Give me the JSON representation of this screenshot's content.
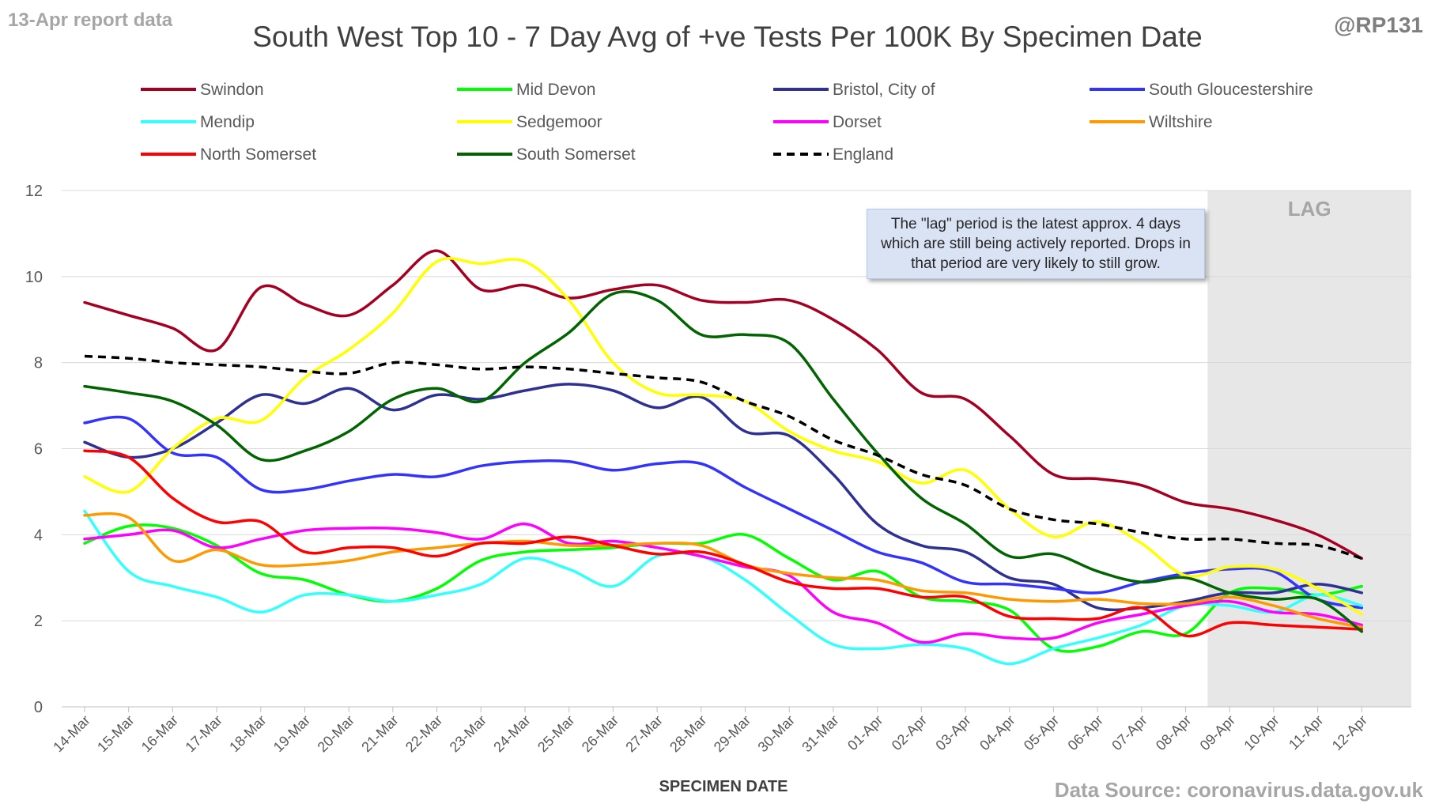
{
  "header": {
    "report_date_label": "13-Apr report data",
    "handle": "@RP131",
    "source": "Data Source: coronavirus.data.gov.uk"
  },
  "annotation": {
    "lag_label": "LAG",
    "lag_note": "The \"lag\" period is the latest approx. 4 days which are still being actively reported. Drops in that period are very likely to still grow."
  },
  "colors": {
    "lag_band": "#e7e7e7",
    "gridline": "#d9d9d9",
    "axis_text": "#595959"
  },
  "chart_data": {
    "type": "line",
    "title": "South West Top 10 - 7 Day Avg of +ve Tests Per 100K By Specimen Date",
    "xlabel": "SPECIMEN DATE",
    "ylabel": "",
    "ylim": [
      0,
      12
    ],
    "yticks": [
      0,
      2,
      4,
      6,
      8,
      10,
      12
    ],
    "grid": true,
    "legend_position": "top",
    "lag_period": [
      "09-Apr",
      "12-Apr"
    ],
    "categories": [
      "14-Mar",
      "15-Mar",
      "16-Mar",
      "17-Mar",
      "18-Mar",
      "19-Mar",
      "20-Mar",
      "21-Mar",
      "22-Mar",
      "23-Mar",
      "24-Mar",
      "25-Mar",
      "26-Mar",
      "27-Mar",
      "28-Mar",
      "29-Mar",
      "30-Mar",
      "31-Mar",
      "01-Apr",
      "02-Apr",
      "03-Apr",
      "04-Apr",
      "05-Apr",
      "06-Apr",
      "07-Apr",
      "08-Apr",
      "09-Apr",
      "10-Apr",
      "11-Apr",
      "12-Apr"
    ],
    "series": [
      {
        "name": "Swindon",
        "color": "#a50021",
        "dashed": false,
        "values": [
          9.4,
          9.1,
          8.8,
          8.3,
          9.75,
          9.35,
          9.1,
          9.8,
          10.6,
          9.7,
          9.8,
          9.5,
          9.7,
          9.8,
          9.45,
          9.4,
          9.45,
          9.0,
          8.3,
          7.3,
          7.15,
          6.3,
          5.4,
          5.3,
          5.15,
          4.75,
          4.6,
          4.35,
          4.0,
          3.45
        ]
      },
      {
        "name": "Mid Devon",
        "color": "#00ff00",
        "dashed": false,
        "values": [
          3.8,
          4.2,
          4.15,
          3.75,
          3.1,
          2.95,
          2.6,
          2.45,
          2.75,
          3.4,
          3.6,
          3.65,
          3.7,
          3.8,
          3.8,
          4.0,
          3.45,
          2.95,
          3.15,
          2.55,
          2.45,
          2.25,
          1.35,
          1.4,
          1.75,
          1.7,
          2.65,
          2.75,
          2.6,
          2.8
        ]
      },
      {
        "name": "Bristol, City of",
        "color": "#2e3192",
        "dashed": false,
        "values": [
          6.15,
          5.8,
          6.0,
          6.6,
          7.25,
          7.05,
          7.4,
          6.9,
          7.25,
          7.15,
          7.35,
          7.5,
          7.35,
          6.95,
          7.2,
          6.4,
          6.3,
          5.4,
          4.25,
          3.75,
          3.6,
          3.0,
          2.85,
          2.3,
          2.3,
          2.45,
          2.65,
          2.65,
          2.85,
          2.65
        ]
      },
      {
        "name": "South Gloucestershire",
        "color": "#3333ff",
        "dashed": false,
        "values": [
          6.6,
          6.7,
          5.9,
          5.8,
          5.05,
          5.05,
          5.25,
          5.4,
          5.35,
          5.6,
          5.7,
          5.7,
          5.5,
          5.65,
          5.65,
          5.1,
          4.6,
          4.1,
          3.6,
          3.35,
          2.9,
          2.85,
          2.75,
          2.65,
          2.9,
          3.1,
          3.2,
          3.15,
          2.5,
          2.3
        ]
      },
      {
        "name": "Mendip",
        "color": "#33ffff",
        "dashed": false,
        "values": [
          4.55,
          3.15,
          2.8,
          2.55,
          2.2,
          2.6,
          2.6,
          2.45,
          2.6,
          2.85,
          3.45,
          3.2,
          2.8,
          3.5,
          3.5,
          2.95,
          2.15,
          1.45,
          1.35,
          1.45,
          1.35,
          1.0,
          1.35,
          1.6,
          1.9,
          2.35,
          2.35,
          2.2,
          2.6,
          2.35
        ]
      },
      {
        "name": "Sedgemoor",
        "color": "#ffff00",
        "dashed": false,
        "values": [
          5.35,
          5.0,
          6.0,
          6.7,
          6.65,
          7.65,
          8.3,
          9.15,
          10.35,
          10.3,
          10.35,
          9.45,
          8.0,
          7.3,
          7.25,
          7.1,
          6.4,
          5.95,
          5.7,
          5.2,
          5.5,
          4.6,
          3.95,
          4.3,
          3.8,
          3.05,
          3.25,
          3.2,
          2.75,
          2.15
        ]
      },
      {
        "name": "Dorset",
        "color": "#ff00ff",
        "dashed": false,
        "values": [
          3.9,
          4.0,
          4.1,
          3.7,
          3.9,
          4.1,
          4.15,
          4.15,
          4.05,
          3.9,
          4.25,
          3.8,
          3.85,
          3.7,
          3.5,
          3.25,
          3.05,
          2.2,
          1.95,
          1.5,
          1.7,
          1.6,
          1.6,
          1.95,
          2.15,
          2.35,
          2.45,
          2.2,
          2.15,
          1.9
        ]
      },
      {
        "name": "Wiltshire",
        "color": "#ff9900",
        "dashed": false,
        "values": [
          4.45,
          4.4,
          3.4,
          3.65,
          3.3,
          3.3,
          3.4,
          3.6,
          3.7,
          3.8,
          3.85,
          3.75,
          3.75,
          3.8,
          3.75,
          3.3,
          3.1,
          3.0,
          2.95,
          2.7,
          2.65,
          2.5,
          2.45,
          2.5,
          2.4,
          2.4,
          2.55,
          2.35,
          2.05,
          1.85
        ]
      },
      {
        "name": "North Somerset",
        "color": "#ff0000",
        "dashed": false,
        "values": [
          5.95,
          5.8,
          4.85,
          4.3,
          4.3,
          3.6,
          3.7,
          3.7,
          3.5,
          3.8,
          3.8,
          3.95,
          3.75,
          3.55,
          3.6,
          3.3,
          2.9,
          2.75,
          2.75,
          2.55,
          2.55,
          2.1,
          2.05,
          2.05,
          2.3,
          1.65,
          1.95,
          1.9,
          1.85,
          1.8
        ]
      },
      {
        "name": "South Somerset",
        "color": "#006400",
        "dashed": false,
        "values": [
          7.45,
          7.3,
          7.1,
          6.55,
          5.75,
          5.95,
          6.4,
          7.15,
          7.4,
          7.1,
          8.0,
          8.7,
          9.6,
          9.45,
          8.65,
          8.65,
          8.45,
          7.15,
          5.9,
          4.85,
          4.25,
          3.5,
          3.55,
          3.15,
          2.9,
          3.0,
          2.65,
          2.5,
          2.5,
          1.75
        ]
      },
      {
        "name": "England",
        "color": "#000000",
        "dashed": true,
        "values": [
          8.15,
          8.1,
          8.0,
          7.95,
          7.9,
          7.8,
          7.75,
          8.0,
          7.95,
          7.85,
          7.9,
          7.85,
          7.75,
          7.65,
          7.55,
          7.1,
          6.75,
          6.2,
          5.85,
          5.4,
          5.15,
          4.6,
          4.35,
          4.25,
          4.05,
          3.9,
          3.9,
          3.8,
          3.75,
          3.45
        ]
      }
    ]
  }
}
